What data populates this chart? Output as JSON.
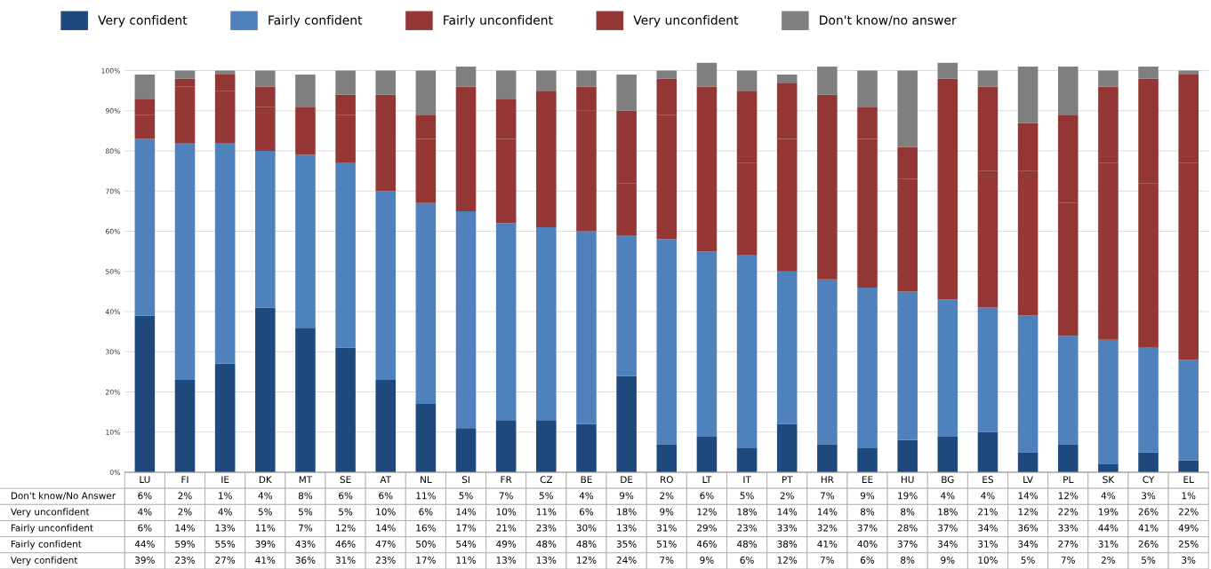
{
  "chart_data": {
    "type": "bar",
    "stacked": true,
    "categories": [
      "LU",
      "FI",
      "IE",
      "DK",
      "MT",
      "SE",
      "AT",
      "NL",
      "SI",
      "FR",
      "CZ",
      "BE",
      "DE",
      "RO",
      "LT",
      "IT",
      "PT",
      "HR",
      "EE",
      "HU",
      "BG",
      "ES",
      "LV",
      "PL",
      "SK",
      "CY",
      "EL"
    ],
    "series": [
      {
        "name": "Very confident",
        "color": "#1f497d",
        "values": [
          39,
          23,
          27,
          41,
          36,
          31,
          23,
          17,
          11,
          13,
          13,
          12,
          24,
          7,
          9,
          6,
          12,
          7,
          6,
          8,
          9,
          10,
          5,
          7,
          2,
          5,
          3
        ],
        "value_labels": [
          "39%",
          "23%",
          "27%",
          "41%",
          "36%",
          "31%",
          "23%",
          "17%",
          "11%",
          "13%",
          "13%",
          "12%",
          "24%",
          "7%",
          "9%",
          "6%",
          "12%",
          "7%",
          "6%",
          "8%",
          "9%",
          "10%",
          "5%",
          "7%",
          "2%",
          "5%",
          "3%"
        ]
      },
      {
        "name": "Fairly confident",
        "color": "#4f81bd",
        "values": [
          44,
          59,
          55,
          39,
          43,
          46,
          47,
          50,
          54,
          49,
          48,
          48,
          35,
          51,
          46,
          48,
          38,
          41,
          40,
          37,
          34,
          31,
          34,
          27,
          31,
          26,
          25
        ],
        "value_labels": [
          "44%",
          "59%",
          "55%",
          "39%",
          "43%",
          "46%",
          "47%",
          "50%",
          "54%",
          "49%",
          "48%",
          "48%",
          "35%",
          "51%",
          "46%",
          "48%",
          "38%",
          "41%",
          "40%",
          "37%",
          "34%",
          "31%",
          "34%",
          "27%",
          "31%",
          "26%",
          "25%"
        ]
      },
      {
        "name": "Fairly unconfident",
        "color": "#953735",
        "values": [
          6,
          14,
          13,
          11,
          7,
          12,
          14,
          16,
          17,
          21,
          23,
          30,
          13,
          31,
          29,
          23,
          33,
          32,
          37,
          28,
          37,
          34,
          36,
          33,
          44,
          41,
          49
        ],
        "value_labels": [
          "6%",
          "14%",
          "13%",
          "11%",
          "7%",
          "12%",
          "14%",
          "16%",
          "17%",
          "21%",
          "23%",
          "30%",
          "13%",
          "31%",
          "29%",
          "23%",
          "33%",
          "32%",
          "37%",
          "28%",
          "37%",
          "34%",
          "36%",
          "33%",
          "44%",
          "41%",
          "49%"
        ]
      },
      {
        "name": "Very unconfident",
        "color": "#943634",
        "values": [
          4,
          2,
          4,
          5,
          5,
          5,
          10,
          6,
          14,
          10,
          11,
          6,
          18,
          9,
          12,
          18,
          14,
          14,
          8,
          8,
          18,
          21,
          12,
          22,
          19,
          26,
          22
        ],
        "value_labels": [
          "4%",
          "2%",
          "4%",
          "5%",
          "5%",
          "5%",
          "10%",
          "6%",
          "14%",
          "10%",
          "11%",
          "6%",
          "18%",
          "9%",
          "12%",
          "18%",
          "14%",
          "14%",
          "8%",
          "8%",
          "18%",
          "21%",
          "12%",
          "22%",
          "19%",
          "26%",
          "22%"
        ]
      },
      {
        "name": "Don't know/no answer",
        "color": "#7f7f7f",
        "values": [
          6,
          2,
          1,
          4,
          8,
          6,
          6,
          11,
          5,
          7,
          5,
          4,
          9,
          2,
          6,
          5,
          2,
          7,
          9,
          19,
          4,
          4,
          14,
          12,
          4,
          3,
          1
        ],
        "value_labels": [
          "6%",
          "2%",
          "1%",
          "4%",
          "8%",
          "6%",
          "6%",
          "11%",
          "5%",
          "7%",
          "5%",
          "4%",
          "9%",
          "2%",
          "6%",
          "5%",
          "2%",
          "7%",
          "9%",
          "19%",
          "4%",
          "4%",
          "14%",
          "12%",
          "4%",
          "3%",
          "1%"
        ]
      }
    ],
    "annotations": [
      "Don't know/No Answer",
      "Very unconfident",
      "Fairly unconfident",
      "Fairly confident",
      "Very confident"
    ],
    "ylim": [
      0,
      102
    ],
    "yticks": [
      {
        "value": 0,
        "label": "0%"
      },
      {
        "value": 10,
        "label": "10%"
      },
      {
        "value": 20,
        "label": "20%"
      },
      {
        "value": 30,
        "label": "30%"
      },
      {
        "value": 40,
        "label": "40%"
      },
      {
        "value": 50,
        "label": "50%"
      },
      {
        "value": 60,
        "label": "60%"
      },
      {
        "value": 70,
        "label": "70%"
      },
      {
        "value": 80,
        "label": "80%"
      },
      {
        "value": 90,
        "label": "90%"
      },
      {
        "value": 100,
        "label": "100%"
      }
    ],
    "grid": "y",
    "legend": "top"
  }
}
